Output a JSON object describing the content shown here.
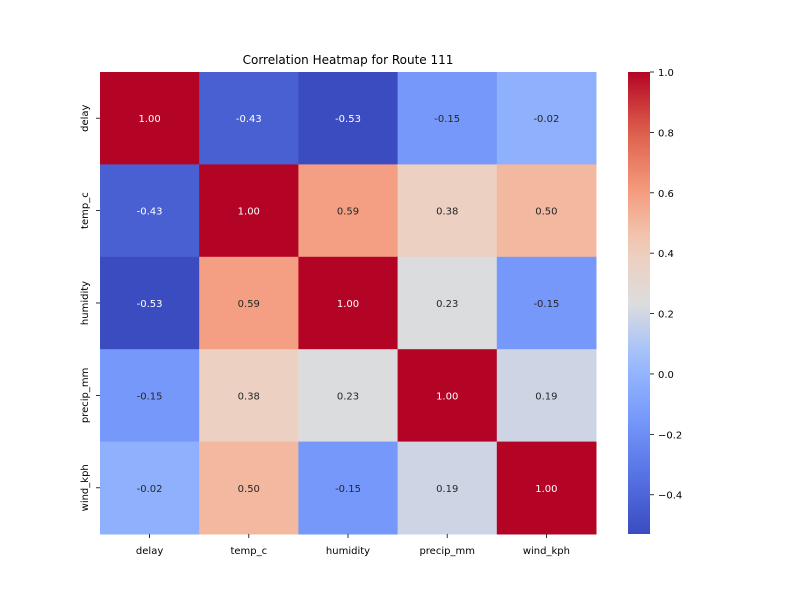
{
  "chart_data": {
    "type": "heatmap",
    "title": "Correlation Heatmap for Route 111",
    "x_labels": [
      "delay",
      "temp_c",
      "humidity",
      "precip_mm",
      "wind_kph"
    ],
    "y_labels": [
      "delay",
      "temp_c",
      "humidity",
      "precip_mm",
      "wind_kph"
    ],
    "values": [
      [
        1.0,
        -0.43,
        -0.53,
        -0.15,
        -0.02
      ],
      [
        -0.43,
        1.0,
        0.59,
        0.38,
        0.5
      ],
      [
        -0.53,
        0.59,
        1.0,
        0.23,
        -0.15
      ],
      [
        -0.15,
        0.38,
        0.23,
        1.0,
        0.19
      ],
      [
        -0.02,
        0.5,
        -0.15,
        0.19,
        1.0
      ]
    ],
    "annotation_format": "0.00",
    "colormap": "coolwarm",
    "colorbar": {
      "range": [
        -0.53,
        1.0
      ],
      "ticks": [
        1.0,
        0.8,
        0.6,
        0.4,
        0.2,
        0.0,
        -0.2,
        -0.4
      ],
      "tick_labels": [
        "1.0",
        "0.8",
        "0.6",
        "0.4",
        "0.2",
        "0.0",
        "−0.2",
        "−0.4"
      ]
    },
    "grid": false,
    "colors": {
      "low": "#3b4cc0",
      "mid": "#dddddd",
      "high": "#b40426"
    }
  }
}
